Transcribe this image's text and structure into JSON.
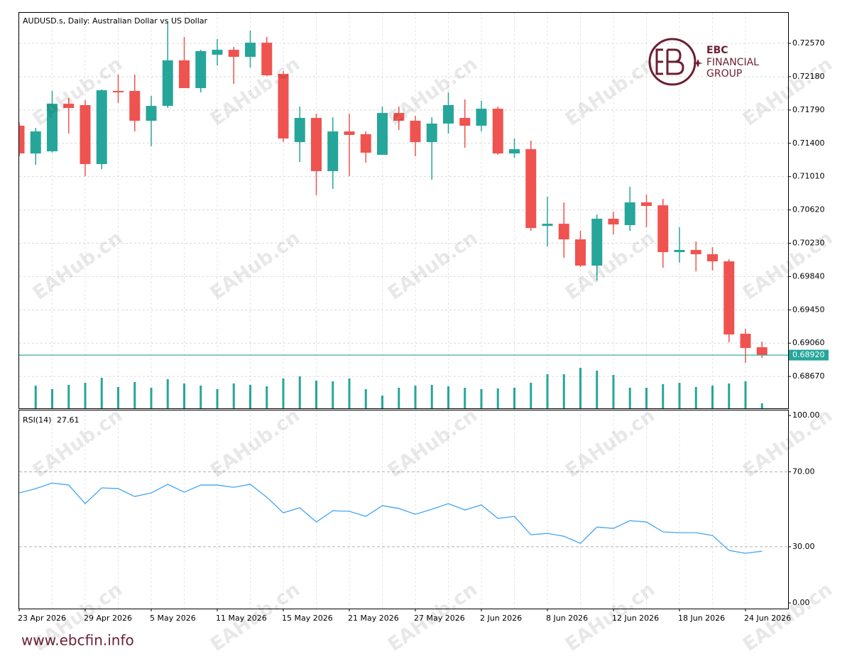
{
  "footer": "www.ebcfin.info",
  "watermark": "EAHub.cn",
  "logo": [
    "EBC",
    "FINANCIAL",
    "GROUP"
  ],
  "chart_data": [
    {
      "type": "candlestick",
      "title": "AUDUSD.s, Daily:  Australian Dollar vs US Dollar",
      "categories": [
        "23 Apr 2026",
        null,
        null,
        null,
        "29 Apr 2026",
        null,
        null,
        null,
        "5 May 2026",
        null,
        null,
        null,
        "11 May 2026",
        null,
        null,
        null,
        "15 May 2026",
        null,
        null,
        null,
        "21 May 2026",
        null,
        null,
        null,
        "27 May 2026",
        null,
        null,
        null,
        "2 Jun 2026",
        null,
        null,
        null,
        "8 Jun 2026",
        null,
        null,
        null,
        "12 Jun 2026",
        null,
        null,
        null,
        "18 Jun 2026",
        null,
        null,
        null,
        "24 Jun 2026",
        null
      ],
      "open": [
        0.71606,
        0.71281,
        0.71306,
        0.71863,
        0.71847,
        0.71157,
        0.72013,
        0.72013,
        0.71664,
        0.71838,
        0.72371,
        0.72046,
        0.72437,
        0.72495,
        0.72412,
        0.72578,
        0.72212,
        0.71414,
        0.71697,
        0.71074,
        0.71539,
        0.71506,
        0.71265,
        0.71755,
        0.71664,
        0.71414,
        0.71631,
        0.71697,
        0.71606,
        0.71805,
        0.71281,
        0.71331,
        0.70433,
        0.70458,
        0.70275,
        0.69968,
        0.70517,
        0.70442,
        0.70708,
        0.70674,
        0.70126,
        0.70151,
        0.70101,
        0.70018,
        0.6917,
        0.69012
      ],
      "high": [
        0.71647,
        0.71581,
        0.72013,
        0.7193,
        0.71905,
        0.7203,
        0.72204,
        0.72204,
        0.71955,
        0.72828,
        0.72645,
        0.72495,
        0.7262,
        0.72528,
        0.7272,
        0.72645,
        0.72246,
        0.7183,
        0.71747,
        0.71705,
        0.71747,
        0.71539,
        0.7183,
        0.7183,
        0.71722,
        0.71705,
        0.71996,
        0.71913,
        0.71897,
        0.7183,
        0.71456,
        0.71431,
        0.70774,
        0.70708,
        0.70375,
        0.70566,
        0.706,
        0.70891,
        0.70799,
        0.70749,
        0.70417,
        0.7025,
        0.70184,
        0.70043,
        0.69228,
        0.69078
      ],
      "low": [
        0.71248,
        0.71148,
        0.7129,
        0.71514,
        0.71015,
        0.71098,
        0.71872,
        0.71539,
        0.71365,
        0.71814,
        0.72046,
        0.71996,
        0.72312,
        0.72096,
        0.72287,
        0.72188,
        0.71414,
        0.71182,
        0.70791,
        0.70866,
        0.71015,
        0.71173,
        0.71265,
        0.71556,
        0.71248,
        0.70974,
        0.71514,
        0.71348,
        0.71539,
        0.71265,
        0.71231,
        0.70375,
        0.70192,
        0.70059,
        0.69951,
        0.69793,
        0.70334,
        0.70375,
        0.70417,
        0.69943,
        0.70001,
        0.69901,
        0.6991,
        0.6907,
        0.68829,
        0.68887
      ],
      "close": [
        0.71281,
        0.71539,
        0.71863,
        0.71814,
        0.71157,
        0.72021,
        0.71996,
        0.71664,
        0.71838,
        0.72371,
        0.72046,
        0.72479,
        0.72495,
        0.72412,
        0.72578,
        0.72196,
        0.71456,
        0.71697,
        0.71074,
        0.71539,
        0.71498,
        0.7129,
        0.71755,
        0.71664,
        0.71414,
        0.71631,
        0.71847,
        0.71606,
        0.71805,
        0.71281,
        0.71331,
        0.70408,
        0.70458,
        0.70275,
        0.69968,
        0.70517,
        0.7045,
        0.70708,
        0.70666,
        0.70126,
        0.70151,
        0.70101,
        0.70018,
        0.69161,
        0.69003,
        0.6892
      ],
      "up_color": "#26a69a",
      "down_color": "#ef5350",
      "volume": [
        null,
        32,
        27,
        33,
        36,
        43,
        30,
        37,
        29,
        41,
        35,
        32,
        27,
        35,
        33,
        31,
        42,
        45,
        39,
        38,
        42,
        27,
        18,
        29,
        32,
        33,
        31,
        29,
        27,
        28,
        29,
        36,
        48,
        48,
        57,
        53,
        47,
        29,
        29,
        34,
        36,
        30,
        32,
        35,
        38,
        7
      ],
      "volume_color": "#26a69a",
      "volume_lim": [
        0,
        120
      ],
      "last_price": {
        "value": 0.6892,
        "label": "0.68920"
      },
      "last_price_color": "#26a69a",
      "ylim": [
        0.68297,
        0.72928
      ],
      "yticks": [
        {
          "value": 0.6867,
          "label": "0.68670"
        },
        {
          "value": 0.6906,
          "label": "0.69060"
        },
        {
          "value": 0.6945,
          "label": "0.69450"
        },
        {
          "value": 0.6984,
          "label": "0.69840"
        },
        {
          "value": 0.7023,
          "label": "0.70230"
        },
        {
          "value": 0.7062,
          "label": "0.70620"
        },
        {
          "value": 0.7101,
          "label": "0.71010"
        },
        {
          "value": 0.714,
          "label": "0.71400"
        },
        {
          "value": 0.7179,
          "label": "0.71790"
        },
        {
          "value": 0.7218,
          "label": "0.72180"
        },
        {
          "value": 0.7257,
          "label": "0.72570"
        }
      ],
      "grid": true
    },
    {
      "type": "line",
      "name": "RSI(14)",
      "color": "#42a5f5",
      "values": [
        58.7,
        61.0,
        64.0,
        62.9,
        53.0,
        61.4,
        61.0,
        56.8,
        58.7,
        63.3,
        59.1,
        62.9,
        62.9,
        61.7,
        63.3,
        56.4,
        48.1,
        50.8,
        43.2,
        49.2,
        48.9,
        46.2,
        51.9,
        50.4,
        47.3,
        50.0,
        53.0,
        49.6,
        52.3,
        45.1,
        46.2,
        36.4,
        37.1,
        35.6,
        31.8,
        40.5,
        39.8,
        43.9,
        43.2,
        37.9,
        37.5,
        37.5,
        36.0,
        28.0,
        26.5,
        27.61
      ],
      "levels": [
        70,
        30
      ],
      "ylim": [
        -3.0,
        102.7
      ],
      "yticks": [
        {
          "value": 0,
          "label": "0.00"
        },
        {
          "value": 30,
          "label": "30.00"
        },
        {
          "value": 70,
          "label": "70.00"
        },
        {
          "value": 100,
          "label": "100.00"
        }
      ]
    }
  ]
}
